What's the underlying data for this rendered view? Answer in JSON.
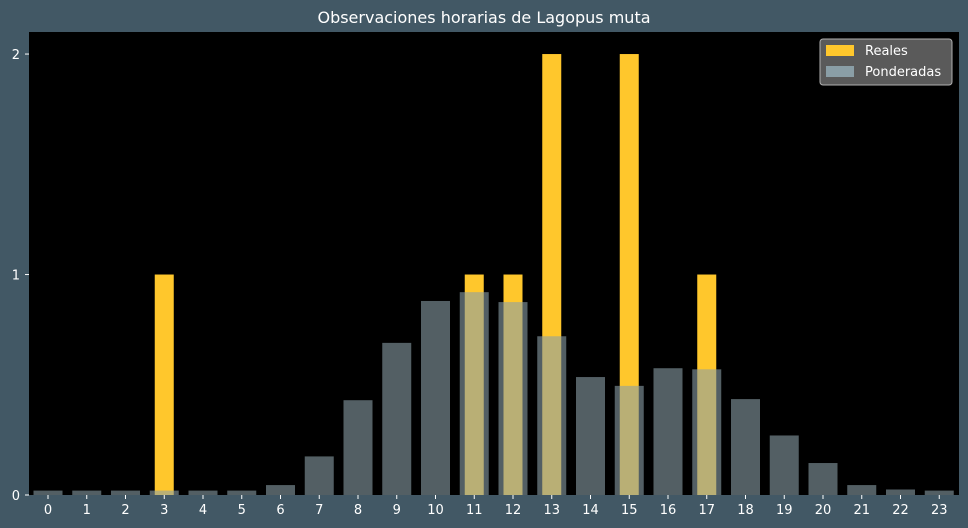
{
  "chart_data": {
    "type": "bar",
    "title": "Observaciones horarias de Lagopus muta",
    "xlabel": "",
    "ylabel": "",
    "categories": [
      "0",
      "1",
      "2",
      "3",
      "4",
      "5",
      "6",
      "7",
      "8",
      "9",
      "10",
      "11",
      "12",
      "13",
      "14",
      "15",
      "16",
      "17",
      "18",
      "19",
      "20",
      "21",
      "22",
      "23"
    ],
    "ylim": [
      0,
      2.1
    ],
    "yticks": [
      0,
      1,
      2
    ],
    "grid": false,
    "legend_position": "top-right",
    "series": [
      {
        "name": "Reales",
        "color": "#ffc72c",
        "values": [
          0,
          0,
          0,
          1,
          0,
          0,
          0,
          0,
          0,
          0,
          0,
          1,
          1,
          2,
          0,
          2,
          0,
          1,
          0,
          0,
          0,
          0,
          0,
          0
        ]
      },
      {
        "name": "Ponderadas",
        "color": "#8a9ea6",
        "values": [
          0.02,
          0.02,
          0.02,
          0.02,
          0.02,
          0.02,
          0.045,
          0.175,
          0.43,
          0.69,
          0.88,
          0.92,
          0.875,
          0.72,
          0.535,
          0.495,
          0.575,
          0.57,
          0.435,
          0.27,
          0.145,
          0.045,
          0.025,
          0.02
        ]
      }
    ]
  }
}
